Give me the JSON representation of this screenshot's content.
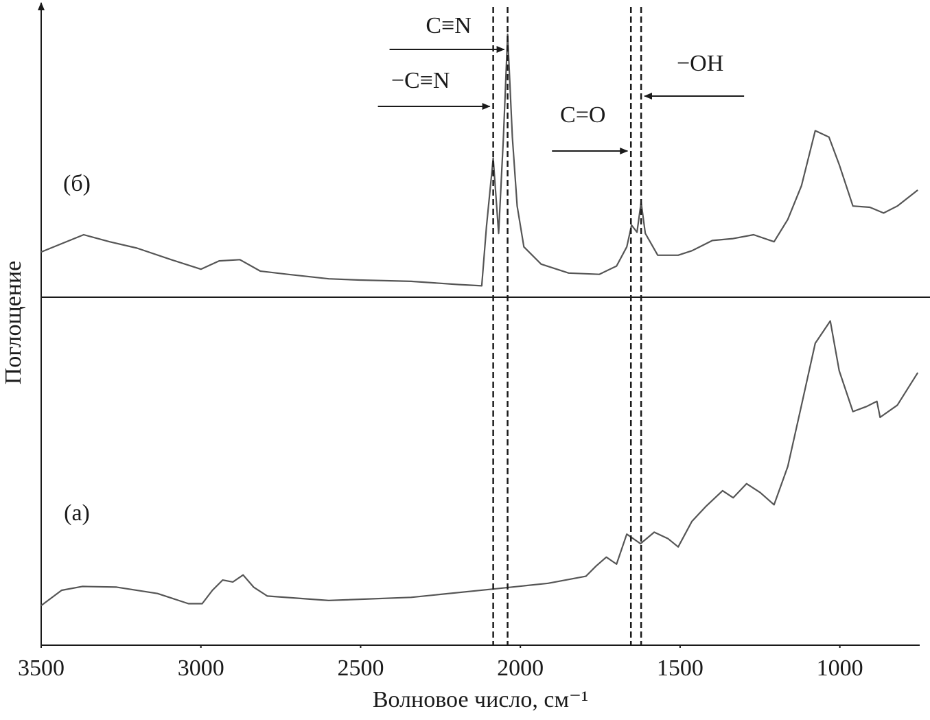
{
  "chart_data": {
    "type": "line",
    "xlabel": "Волновое число, см⁻¹",
    "ylabel": "Поглощение",
    "xlim": [
      3500,
      750
    ],
    "xticks": [
      3500,
      3000,
      2500,
      2000,
      1500,
      1000
    ],
    "ylim": [
      0,
      100
    ],
    "series": [
      {
        "name": "(б)",
        "color": "#555555",
        "x": [
          3500,
          3436,
          3367,
          3286,
          3200,
          3093,
          3000,
          2943,
          2878,
          2814,
          2728,
          2600,
          2503,
          2342,
          2192,
          2121,
          2106,
          2085,
          2068,
          2053,
          2040,
          2025,
          2010,
          1989,
          1935,
          1849,
          1753,
          1699,
          1667,
          1652,
          1635,
          1622,
          1609,
          1570,
          1506,
          1463,
          1399,
          1334,
          1270,
          1206,
          1163,
          1120,
          1077,
          1034,
          1002,
          959,
          906,
          863,
          820,
          756
        ],
        "values": [
          61.6,
          62.9,
          64.3,
          63.2,
          62.2,
          60.4,
          58.9,
          60.2,
          60.4,
          58.6,
          58.1,
          57.4,
          57.2,
          57.0,
          56.5,
          56.3,
          65.6,
          76.3,
          64.5,
          79.6,
          95.7,
          79.6,
          68.8,
          62.4,
          59.7,
          58.3,
          58.1,
          59.4,
          62.4,
          65.8,
          64.7,
          69.4,
          64.5,
          61.1,
          61.1,
          61.8,
          63.4,
          63.7,
          64.3,
          63.2,
          66.7,
          72.0,
          80.6,
          79.6,
          75.3,
          68.8,
          68.6,
          67.7,
          68.8,
          71.3
        ]
      },
      {
        "name": "(а)",
        "color": "#555555",
        "x": [
          3500,
          3436,
          3371,
          3264,
          3136,
          3039,
          2996,
          2964,
          2932,
          2900,
          2868,
          2835,
          2792,
          2600,
          2342,
          2085,
          1913,
          1795,
          1763,
          1731,
          1699,
          1667,
          1624,
          1581,
          1538,
          1506,
          1463,
          1420,
          1367,
          1334,
          1292,
          1249,
          1206,
          1163,
          1120,
          1077,
          1030,
          1002,
          959,
          916,
          884,
          874,
          820,
          756
        ],
        "values": [
          6.2,
          8.6,
          9.2,
          9.1,
          8.1,
          6.5,
          6.5,
          8.6,
          10.2,
          9.9,
          11.0,
          9.1,
          7.7,
          7.0,
          7.5,
          8.8,
          9.7,
          10.8,
          12.4,
          13.8,
          12.7,
          17.4,
          15.9,
          17.7,
          16.7,
          15.4,
          19.4,
          21.7,
          24.2,
          23.1,
          25.3,
          23.9,
          22.0,
          28.0,
          37.6,
          47.3,
          50.8,
          43.0,
          36.6,
          37.4,
          38.2,
          35.7,
          37.6,
          42.7
        ]
      }
    ],
    "annotations": [
      {
        "text": "C≡N",
        "x": 2040
      },
      {
        "text": "−C≡N",
        "x": 2085
      },
      {
        "text": "C=O",
        "x": 1654
      },
      {
        "text": "−OH",
        "x": 1622
      }
    ]
  }
}
